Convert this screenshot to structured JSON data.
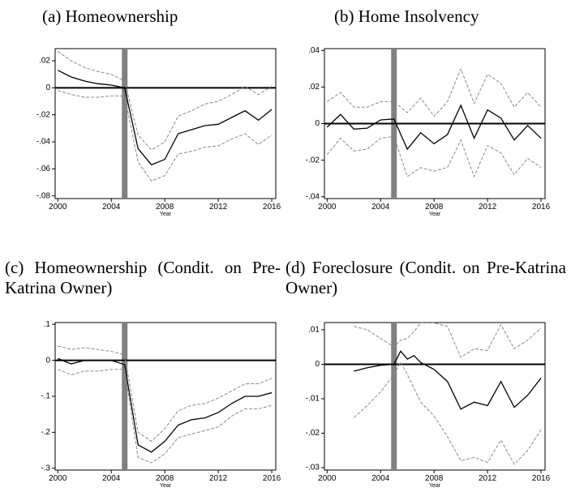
{
  "chart_data": [
    {
      "type": "line",
      "title": "(a) Homeownership",
      "xlabel": "Year",
      "x": [
        2000,
        2001,
        2002,
        2003,
        2004,
        2005,
        2006,
        2007,
        2008,
        2009,
        2010,
        2011,
        2012,
        2013,
        2014,
        2015,
        2016
      ],
      "xlim": [
        1999.8,
        2016.3
      ],
      "xticks": [
        2000,
        2004,
        2008,
        2012,
        2016
      ],
      "ylim": [
        -0.082,
        0.029
      ],
      "yticks": [
        {
          "value": 0.02,
          "label": ".02"
        },
        0,
        {
          "value": -0.02,
          "label": "-.02"
        },
        {
          "value": -0.04,
          "label": "-.04"
        },
        {
          "value": -0.06,
          "label": "-.06"
        },
        {
          "value": -0.08,
          "label": "-.08"
        }
      ],
      "vline": 2005,
      "vline_color": "#808080",
      "hline": 0,
      "series": [
        {
          "color": "#000000",
          "dashed": false,
          "values": [
            0.013,
            0.008,
            0.005,
            0.003,
            0.002,
            0,
            -0.045,
            -0.057,
            -0.053,
            -0.034,
            -0.031,
            -0.028,
            -0.027,
            -0.022,
            -0.017,
            -0.024,
            -0.016
          ]
        },
        {
          "color": "#888888",
          "dashed": true,
          "values": [
            0.027,
            0.02,
            0.015,
            0.012,
            0.01,
            0.005,
            -0.035,
            -0.046,
            -0.04,
            -0.021,
            -0.017,
            -0.012,
            -0.01,
            -0.005,
            0.001,
            -0.005,
            0.001
          ]
        },
        {
          "color": "#888888",
          "dashed": true,
          "values": [
            -0.002,
            -0.005,
            -0.007,
            -0.007,
            -0.006,
            -0.006,
            -0.055,
            -0.069,
            -0.065,
            -0.049,
            -0.047,
            -0.044,
            -0.043,
            -0.038,
            -0.034,
            -0.042,
            -0.035
          ]
        }
      ]
    },
    {
      "type": "line",
      "title": "(b) Home Insolvency",
      "xlabel": "Year",
      "x": [
        2000,
        2001,
        2002,
        2003,
        2004,
        2005,
        2006,
        2007,
        2008,
        2009,
        2010,
        2011,
        2012,
        2013,
        2014,
        2015,
        2016
      ],
      "xlim": [
        1999.8,
        2016.3
      ],
      "xticks": [
        2000,
        2004,
        2008,
        2012,
        2016
      ],
      "ylim": [
        -0.041,
        0.041
      ],
      "yticks": [
        {
          "value": 0.04,
          "label": ".04"
        },
        {
          "value": 0.02,
          "label": ".02"
        },
        0,
        {
          "value": -0.02,
          "label": "-.02"
        },
        {
          "value": -0.04,
          "label": "-.04"
        }
      ],
      "vline": 2005,
      "vline_color": "#808080",
      "hline": 0,
      "series": [
        {
          "color": "#000000",
          "dashed": false,
          "values": [
            -0.002,
            0.005,
            -0.003,
            -0.0025,
            0.002,
            0.0025,
            -0.014,
            -0.005,
            -0.011,
            -0.006,
            0.01,
            -0.008,
            0.0075,
            0.003,
            -0.009,
            -0.001,
            -0.008
          ]
        },
        {
          "color": "#888888",
          "dashed": true,
          "values": [
            0.012,
            0.017,
            0.009,
            0.009,
            0.012,
            0.012,
            0.006,
            0.014,
            0.004,
            0.012,
            0.03,
            0.011,
            0.027,
            0.022,
            0.009,
            0.017,
            0.009
          ]
        },
        {
          "color": "#888888",
          "dashed": true,
          "values": [
            -0.017,
            -0.008,
            -0.015,
            -0.014,
            -0.008,
            -0.007,
            -0.029,
            -0.024,
            -0.026,
            -0.024,
            -0.009,
            -0.029,
            -0.012,
            -0.016,
            -0.028,
            -0.019,
            -0.024
          ]
        }
      ]
    },
    {
      "type": "line",
      "title": "(c) Homeownership (Condit. on Pre-Katrina Owner)",
      "xlabel": "Year",
      "x": [
        2000,
        2001,
        2002,
        2003,
        2004,
        2005,
        2006,
        2007,
        2008,
        2009,
        2010,
        2011,
        2012,
        2013,
        2014,
        2015,
        2016
      ],
      "xlim": [
        1999.8,
        2016.3
      ],
      "xticks": [
        2000,
        2004,
        2008,
        2012,
        2016
      ],
      "ylim": [
        -0.305,
        0.105
      ],
      "yticks": [
        {
          "value": 0.1,
          "label": ".1"
        },
        0,
        {
          "value": -0.1,
          "label": "-.1"
        },
        {
          "value": -0.2,
          "label": "-.2"
        },
        {
          "value": -0.3,
          "label": "-.3"
        }
      ],
      "vline": 2005,
      "vline_color": "#808080",
      "hline": 0,
      "series": [
        {
          "color": "#000000",
          "dashed": false,
          "values": [
            0.005,
            -0.01,
            0,
            0,
            0,
            -0.012,
            -0.235,
            -0.255,
            -0.225,
            -0.18,
            -0.165,
            -0.16,
            -0.145,
            -0.12,
            -0.1,
            -0.1,
            -0.09
          ]
        },
        {
          "color": "#888888",
          "dashed": true,
          "values": [
            0.04,
            0.03,
            0.035,
            0.03,
            0.025,
            0.015,
            -0.2,
            -0.225,
            -0.19,
            -0.14,
            -0.125,
            -0.12,
            -0.105,
            -0.085,
            -0.065,
            -0.065,
            -0.05
          ]
        },
        {
          "color": "#888888",
          "dashed": true,
          "values": [
            -0.025,
            -0.04,
            -0.03,
            -0.03,
            -0.025,
            -0.025,
            -0.27,
            -0.285,
            -0.26,
            -0.215,
            -0.205,
            -0.195,
            -0.185,
            -0.155,
            -0.135,
            -0.135,
            -0.125
          ]
        }
      ]
    },
    {
      "type": "line",
      "title": "(d) Foreclosure (Condit. on Pre-Katrina Owner)",
      "xlabel": "Year",
      "x": [
        2002,
        2003,
        2004,
        2005,
        2005.5,
        2006,
        2006.5,
        2007,
        2008,
        2009,
        2010,
        2011,
        2012,
        2013,
        2014,
        2015,
        2016
      ],
      "xlim": [
        1999.8,
        2016.3
      ],
      "xticks": [
        2000,
        2004,
        2008,
        2012,
        2016
      ],
      "ylim": [
        -0.0307,
        0.0121
      ],
      "yticks": [
        {
          "value": 0.01,
          "label": ".01"
        },
        0,
        {
          "value": -0.01,
          "label": "-.01"
        },
        {
          "value": -0.02,
          "label": "-.02"
        },
        {
          "value": -0.03,
          "label": "-.03"
        }
      ],
      "vline": 2005,
      "vline_color": "#808080",
      "hline": 0,
      "series": [
        {
          "color": "#000000",
          "dashed": false,
          "values": [
            -0.002,
            -0.001,
            -0.0003,
            0,
            0.0038,
            0.0015,
            0.0025,
            0.0005,
            -0.0015,
            -0.005,
            -0.013,
            -0.011,
            -0.012,
            -0.005,
            -0.0125,
            -0.009,
            -0.004
          ]
        },
        {
          "color": "#888888",
          "dashed": true,
          "values": [
            0.011,
            0.01,
            0.0075,
            0.005,
            0.007,
            0.0075,
            0.0095,
            0.012,
            0.012,
            0.011,
            0.002,
            0.0045,
            0.004,
            0.0115,
            0.0045,
            0.007,
            0.0105
          ]
        },
        {
          "color": "#888888",
          "dashed": true,
          "values": [
            -0.0155,
            -0.012,
            -0.008,
            -0.003,
            0.0005,
            -0.003,
            -0.007,
            -0.011,
            -0.015,
            -0.021,
            -0.028,
            -0.027,
            -0.0285,
            -0.022,
            -0.029,
            -0.025,
            -0.019
          ]
        }
      ]
    }
  ]
}
